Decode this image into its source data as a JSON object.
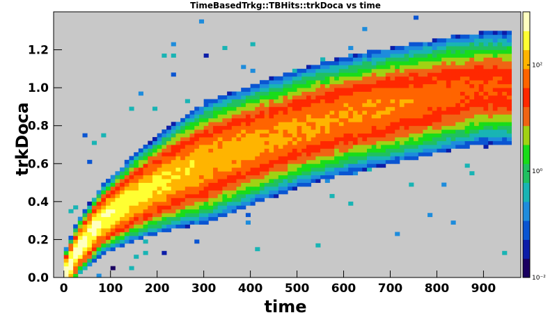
{
  "chart_data": {
    "type": "heatmap",
    "title": "TimeBasedTrkg::TBHits::trkDoca vs time",
    "xlabel": "time",
    "ylabel": "trkDoca",
    "xlim": [
      -22,
      980
    ],
    "ylim": [
      0,
      1.4
    ],
    "x_ticks": [
      0,
      100,
      200,
      300,
      400,
      500,
      600,
      700,
      800,
      900
    ],
    "x_tick_labels": [
      "0",
      "100",
      "200",
      "300",
      "400",
      "500",
      "600",
      "700",
      "800",
      "900"
    ],
    "y_ticks": [
      0,
      0.2,
      0.4,
      0.6,
      0.8,
      1.0,
      1.2
    ],
    "y_tick_labels": [
      "0.0",
      "0.2",
      "0.4",
      "0.6",
      "0.8",
      "1.0",
      "1.2"
    ],
    "z_scale": "log",
    "z_range": [
      0.01,
      1000
    ],
    "z_ticks": [
      0.01,
      1,
      100
    ],
    "z_tick_labels": [
      "10⁻²",
      "10⁰",
      "10²"
    ],
    "background_color": "#c8c8c8",
    "grid": false,
    "bin_size": {
      "x": 10,
      "y": 0.02
    },
    "ridge_points": [
      {
        "time": 0,
        "doca": 0.0
      },
      {
        "time": 30,
        "doca": 0.15
      },
      {
        "time": 80,
        "doca": 0.3
      },
      {
        "time": 150,
        "doca": 0.42
      },
      {
        "time": 250,
        "doca": 0.55
      },
      {
        "time": 350,
        "doca": 0.65
      },
      {
        "time": 450,
        "doca": 0.74
      },
      {
        "time": 550,
        "doca": 0.82
      },
      {
        "time": 650,
        "doca": 0.88
      },
      {
        "time": 750,
        "doca": 0.93
      },
      {
        "time": 850,
        "doca": 0.98
      },
      {
        "time": 900,
        "doca": 1.0
      }
    ],
    "ridge_peak_counts": [
      {
        "time": 0,
        "count": 1000
      },
      {
        "time": 50,
        "count": 600
      },
      {
        "time": 150,
        "count": 300
      },
      {
        "time": 300,
        "count": 150
      },
      {
        "time": 500,
        "count": 100
      },
      {
        "time": 700,
        "count": 80
      },
      {
        "time": 900,
        "count": 40
      }
    ],
    "palette": [
      "#1a0060",
      "#0c1da8",
      "#0a55d2",
      "#1e8cdc",
      "#19b4b4",
      "#20c060",
      "#19dc19",
      "#a0d214",
      "#f06414",
      "#ff2800",
      "#ff6400",
      "#ffb400",
      "#ffff32",
      "#ffffc0"
    ]
  }
}
